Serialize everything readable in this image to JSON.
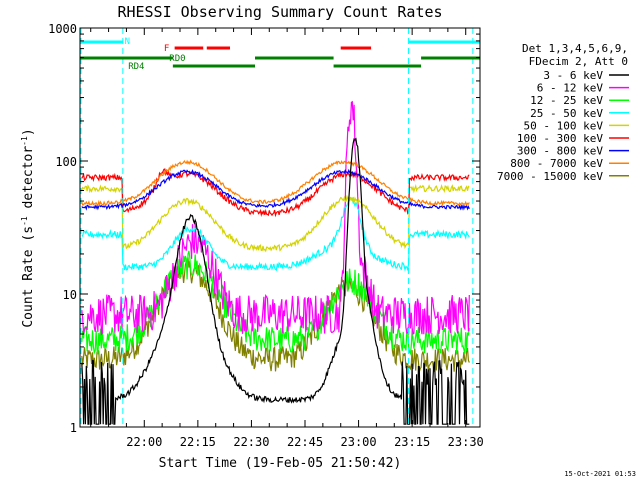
{
  "chart_data": {
    "type": "line",
    "title": "RHESSI Observing Summary Count Rates",
    "xlabel": "Start Time (19-Feb-05 21:50:42)",
    "ylabel_main": "Count Rate (s",
    "ylabel_sup1": "-1",
    "ylabel_mid": " detector",
    "ylabel_sup2": "-1",
    "ylabel_end": ")",
    "yscale": "log",
    "ylim": [
      1,
      1000
    ],
    "xlim_min": [
      -8,
      104
    ],
    "x_ticks": [
      {
        "v": 10,
        "label": "22:00"
      },
      {
        "v": 25,
        "label": "22:15"
      },
      {
        "v": 40,
        "label": "22:30"
      },
      {
        "v": 55,
        "label": "22:45"
      },
      {
        "v": 70,
        "label": "23:00"
      },
      {
        "v": 85,
        "label": "23:15"
      },
      {
        "v": 100,
        "label": "23:30"
      }
    ],
    "y_ticks": [
      {
        "v": 1,
        "label": "1"
      },
      {
        "v": 10,
        "label": "10"
      },
      {
        "v": 100,
        "label": "100"
      },
      {
        "v": 1000,
        "label": "1000"
      }
    ],
    "legend_header": [
      "Det 1,3,4,5,6,9,",
      "FDecim 2, Att 0"
    ],
    "legend_position": "right",
    "series": [
      {
        "name": "3 - 6 keV",
        "color": "#000000"
      },
      {
        "name": "6 - 12 keV",
        "color": "#ff00ff"
      },
      {
        "name": "12 - 25 keV",
        "color": "#00ff00"
      },
      {
        "name": "25 - 50 keV",
        "color": "#00ffff"
      },
      {
        "name": "50 - 100 keV",
        "color": "#d4d400"
      },
      {
        "name": "100 - 300 keV",
        "color": "#ff0000"
      },
      {
        "name": "300 - 800 keV",
        "color": "#0000ff"
      },
      {
        "name": "800 - 7000 keV",
        "color": "#ff8000"
      },
      {
        "name": "7000 - 15000 keV",
        "color": "#808000"
      }
    ],
    "flags": {
      "night_label": "N",
      "flare_label": "F",
      "rd0_label": "RD0",
      "rd4_label": "RD4",
      "night_color": "#00ffff",
      "flare_color": "#ff0000",
      "decim_color": "#008000"
    },
    "timestamp": "15-Oct-2021 01:53"
  }
}
